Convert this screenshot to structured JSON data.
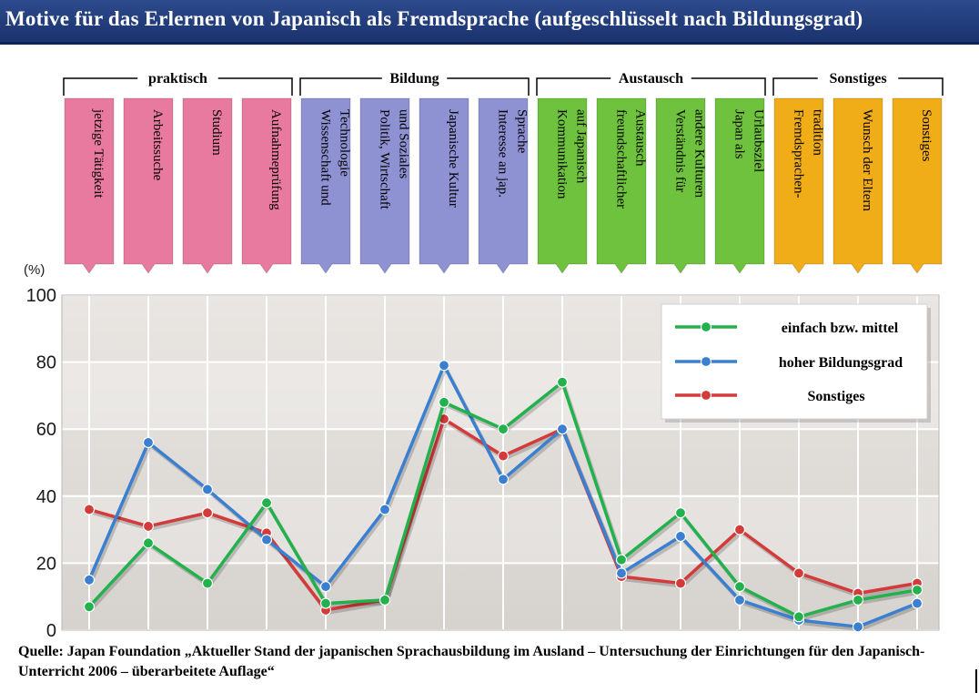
{
  "title": "Motive für das Erlernen von Japanisch als Fremdsprache (aufgeschlüsselt nach Bildungsgrad)",
  "source": "Quelle: Japan Foundation „Aktueller Stand der japanischen Sprachausbildung im Ausland – Untersuchung der Einrichtungen für den Japanisch-Unterricht 2006 – überarbeitete Auflage“",
  "colors": {
    "praktisch": "#e87aa0",
    "bildung": "#8e91d2",
    "austausch": "#6fc23d",
    "sonstiges": "#f0ad18",
    "series_green": "#22b14c",
    "series_blue": "#3a7fd0",
    "series_red": "#d33a3a"
  },
  "chart_data": {
    "type": "line",
    "ylabel": "(%)",
    "ylim": [
      0,
      100
    ],
    "yticks": [
      "0",
      "20",
      "40",
      "60",
      "80",
      "100"
    ],
    "grid": true,
    "legend_position": "top-right",
    "groups": [
      {
        "label": "praktisch",
        "color_key": "praktisch",
        "count": 4
      },
      {
        "label": "Bildung",
        "color_key": "bildung",
        "count": 4
      },
      {
        "label": "Austausch",
        "color_key": "austausch",
        "count": 4
      },
      {
        "label": "Sonstiges",
        "color_key": "sonstiges",
        "count": 3
      }
    ],
    "categories": [
      "jetzige Tätigkeit",
      "Arbeitssuche",
      "Studium",
      "Aufnahmeprüfung",
      "Wissenschaft und Technologie",
      "Politik, Wirtschaft und Soziales",
      "Japanische Kultur",
      "Interesse an jap. Sprache",
      "Kommunikation auf Japanisch",
      "freundschaftlicher Austausch",
      "Verständnis für andere Kulturen",
      "Japan als Urlaubsziel",
      "Fremdsprachen-tradition",
      "Wunsch der Eltern",
      "Sonstiges"
    ],
    "category_lines": [
      [
        "jetzige Tätigkeit"
      ],
      [
        "Arbeitssuche"
      ],
      [
        "Studium"
      ],
      [
        "Aufnahmeprüfung"
      ],
      [
        "Wissenschaft und",
        "Technologie"
      ],
      [
        "Politik, Wirtschaft",
        "und Soziales"
      ],
      [
        "Japanische Kultur"
      ],
      [
        "Interesse an jap.",
        "Sprache"
      ],
      [
        "Kommunikation",
        "auf Japanisch"
      ],
      [
        "freundschaftlicher",
        "Austausch"
      ],
      [
        "Verständnis für",
        "andere Kulturen"
      ],
      [
        "Japan als",
        "Urlaubsziel"
      ],
      [
        "Fremdsprachen-",
        "tradition"
      ],
      [
        "Wunsch der Eltern"
      ],
      [
        "Sonstiges"
      ]
    ],
    "series": [
      {
        "name": "einfach bzw. mittel",
        "color_key": "series_green",
        "values": [
          7,
          26,
          14,
          38,
          8,
          9,
          68,
          60,
          74,
          21,
          35,
          13,
          4,
          9,
          12
        ]
      },
      {
        "name": "hoher Bildungsgrad",
        "color_key": "series_blue",
        "values": [
          15,
          56,
          42,
          27,
          13,
          36,
          79,
          45,
          60,
          17,
          28,
          9,
          3,
          1,
          8
        ]
      },
      {
        "name": "Sonstiges",
        "color_key": "series_red",
        "values": [
          36,
          31,
          35,
          29,
          6,
          9,
          63,
          52,
          60,
          16,
          14,
          30,
          17,
          11,
          14
        ]
      }
    ]
  }
}
